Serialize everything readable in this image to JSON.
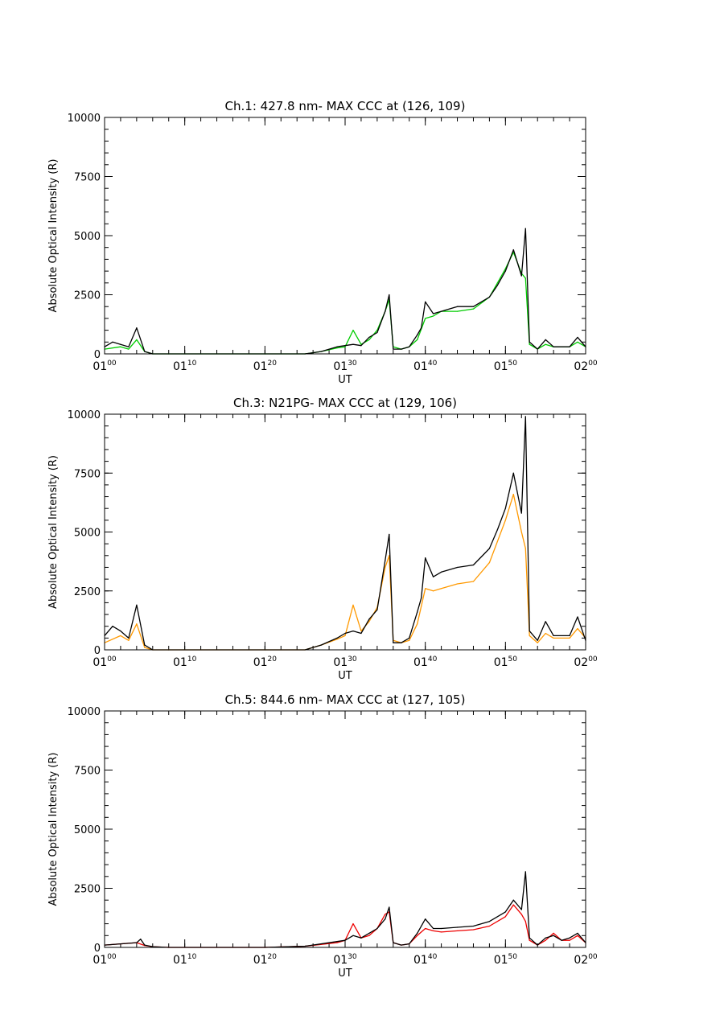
{
  "chart_data": [
    {
      "type": "line",
      "title": "Ch.1: 427.8 nm- MAX CCC at (126, 109)",
      "xlabel": "UT",
      "ylabel": "Absolute Optical Intensity (R)",
      "xlim": [
        "01:00",
        "02:00"
      ],
      "ylim": [
        0,
        10000
      ],
      "x_ticks": [
        {
          "h": "01",
          "m": "00"
        },
        {
          "h": "01",
          "m": "10"
        },
        {
          "h": "01",
          "m": "20"
        },
        {
          "h": "01",
          "m": "30"
        },
        {
          "h": "01",
          "m": "40"
        },
        {
          "h": "01",
          "m": "50"
        },
        {
          "h": "02",
          "m": "00"
        }
      ],
      "y_ticks": [
        "0",
        "2500",
        "5000",
        "7500",
        "10000"
      ],
      "grid": false,
      "series": [
        {
          "color": "#00cc00",
          "x": [
            "01:00",
            "01:02",
            "01:03",
            "01:04",
            "01:05",
            "01:06",
            "01:08",
            "01:20",
            "01:25",
            "01:27",
            "01:29",
            "01:30",
            "01:31",
            "01:32",
            "01:33",
            "01:34",
            "01:35",
            "01:35.5",
            "01:36",
            "01:37",
            "01:38",
            "01:39",
            "01:40",
            "01:41",
            "01:42",
            "01:44",
            "01:46",
            "01:48",
            "01:49",
            "01:50",
            "01:51",
            "01:52",
            "01:52.5",
            "01:53",
            "01:54",
            "01:55",
            "01:56",
            "01:58",
            "01:59",
            "02:00"
          ],
          "y": [
            200,
            300,
            200,
            600,
            100,
            0,
            0,
            0,
            0,
            100,
            250,
            300,
            1000,
            400,
            600,
            1000,
            1800,
            2300,
            300,
            200,
            300,
            600,
            1500,
            1600,
            1800,
            1800,
            1900,
            2400,
            3000,
            3600,
            4300,
            3400,
            3200,
            400,
            200,
            400,
            300,
            300,
            500,
            300
          ]
        },
        {
          "color": "#000000",
          "x": [
            "01:00",
            "01:01",
            "01:02",
            "01:03",
            "01:04",
            "01:05",
            "01:06",
            "01:08",
            "01:20",
            "01:25",
            "01:27",
            "01:29",
            "01:30",
            "01:31",
            "01:32",
            "01:33",
            "01:34",
            "01:35",
            "01:35.5",
            "01:36",
            "01:37",
            "01:38",
            "01:39",
            "01:39.5",
            "01:40",
            "01:41",
            "01:42",
            "01:44",
            "01:46",
            "01:48",
            "01:49",
            "01:50",
            "01:51",
            "01:52",
            "01:52.5",
            "01:53",
            "01:54",
            "01:55",
            "01:56",
            "01:58",
            "01:59",
            "02:00"
          ],
          "y": [
            300,
            500,
            400,
            300,
            1100,
            100,
            0,
            0,
            0,
            0,
            100,
            300,
            350,
            400,
            350,
            700,
            900,
            1800,
            2500,
            200,
            200,
            300,
            800,
            1100,
            2200,
            1700,
            1800,
            2000,
            2000,
            2400,
            2900,
            3500,
            4400,
            3300,
            5300,
            500,
            200,
            600,
            300,
            300,
            700,
            300
          ]
        }
      ]
    },
    {
      "type": "line",
      "title": "Ch.3: N21PG- MAX CCC at (129, 106)",
      "xlabel": "UT",
      "ylabel": "Absolute Optical Intensity (R)",
      "xlim": [
        "01:00",
        "02:00"
      ],
      "ylim": [
        0,
        10000
      ],
      "x_ticks": [
        {
          "h": "01",
          "m": "00"
        },
        {
          "h": "01",
          "m": "10"
        },
        {
          "h": "01",
          "m": "20"
        },
        {
          "h": "01",
          "m": "30"
        },
        {
          "h": "01",
          "m": "40"
        },
        {
          "h": "01",
          "m": "50"
        },
        {
          "h": "02",
          "m": "00"
        }
      ],
      "y_ticks": [
        "0",
        "2500",
        "5000",
        "7500",
        "10000"
      ],
      "grid": false,
      "series": [
        {
          "color": "#ff9900",
          "x": [
            "01:00",
            "01:02",
            "01:03",
            "01:04",
            "01:05",
            "01:06",
            "01:08",
            "01:20",
            "01:25",
            "01:27",
            "01:29",
            "01:30",
            "01:31",
            "01:32",
            "01:33",
            "01:34",
            "01:35",
            "01:35.5",
            "01:36",
            "01:37",
            "01:38",
            "01:39",
            "01:40",
            "01:41",
            "01:42",
            "01:44",
            "01:46",
            "01:48",
            "01:49",
            "01:50",
            "01:51",
            "01:52",
            "01:52.5",
            "01:53",
            "01:54",
            "01:55",
            "01:56",
            "01:58",
            "01:59",
            "02:00"
          ],
          "y": [
            300,
            600,
            400,
            1100,
            100,
            0,
            0,
            0,
            0,
            200,
            450,
            600,
            1900,
            800,
            1200,
            1800,
            3500,
            4000,
            400,
            300,
            400,
            1100,
            2600,
            2500,
            2600,
            2800,
            2900,
            3700,
            4600,
            5500,
            6600,
            5000,
            4300,
            600,
            300,
            700,
            500,
            500,
            900,
            500
          ]
        },
        {
          "color": "#000000",
          "x": [
            "01:00",
            "01:01",
            "01:02",
            "01:03",
            "01:04",
            "01:05",
            "01:06",
            "01:08",
            "01:20",
            "01:25",
            "01:27",
            "01:29",
            "01:30",
            "01:31",
            "01:32",
            "01:33",
            "01:34",
            "01:35",
            "01:35.5",
            "01:36",
            "01:37",
            "01:38",
            "01:39",
            "01:39.5",
            "01:40",
            "01:41",
            "01:42",
            "01:44",
            "01:46",
            "01:48",
            "01:49",
            "01:50",
            "01:51",
            "01:52",
            "01:52.5",
            "01:53",
            "01:54",
            "01:55",
            "01:56",
            "01:58",
            "01:59",
            "02:00"
          ],
          "y": [
            600,
            1000,
            800,
            500,
            1900,
            200,
            0,
            0,
            0,
            0,
            200,
            500,
            700,
            800,
            700,
            1300,
            1700,
            3800,
            4900,
            300,
            300,
            500,
            1600,
            2200,
            3900,
            3100,
            3300,
            3500,
            3600,
            4300,
            5100,
            6000,
            7500,
            5800,
            9900,
            800,
            400,
            1200,
            600,
            600,
            1400,
            400
          ]
        }
      ]
    },
    {
      "type": "line",
      "title": "Ch.5: 844.6 nm- MAX CCC at (127, 105)",
      "xlabel": "UT",
      "ylabel": "Absolute Optical Intensity (R)",
      "xlim": [
        "01:00",
        "02:00"
      ],
      "ylim": [
        0,
        10000
      ],
      "x_ticks": [
        {
          "h": "01",
          "m": "00"
        },
        {
          "h": "01",
          "m": "10"
        },
        {
          "h": "01",
          "m": "20"
        },
        {
          "h": "01",
          "m": "30"
        },
        {
          "h": "01",
          "m": "40"
        },
        {
          "h": "01",
          "m": "50"
        },
        {
          "h": "02",
          "m": "00"
        }
      ],
      "y_ticks": [
        "0",
        "2500",
        "5000",
        "7500",
        "10000"
      ],
      "grid": false,
      "series": [
        {
          "color": "#ee0000",
          "x": [
            "01:00",
            "01:02",
            "01:04",
            "01:05",
            "01:06",
            "01:08",
            "01:20",
            "01:25",
            "01:29",
            "01:30",
            "01:31",
            "01:32",
            "01:33",
            "01:34",
            "01:35",
            "01:35.5",
            "01:36",
            "01:37",
            "01:38",
            "01:39",
            "01:40",
            "01:41",
            "01:42",
            "01:44",
            "01:46",
            "01:48",
            "01:50",
            "01:51",
            "01:52",
            "01:52.5",
            "01:53",
            "01:54",
            "01:55",
            "01:56",
            "01:57",
            "01:58",
            "01:59",
            "02:00"
          ],
          "y": [
            100,
            150,
            200,
            80,
            30,
            0,
            0,
            50,
            200,
            300,
            1000,
            400,
            500,
            800,
            1400,
            1500,
            200,
            100,
            150,
            500,
            800,
            700,
            650,
            700,
            750,
            900,
            1300,
            1800,
            1400,
            1100,
            300,
            100,
            300,
            600,
            300,
            300,
            500,
            200
          ]
        },
        {
          "color": "#000000",
          "x": [
            "01:00",
            "01:02",
            "01:04",
            "01:04.5",
            "01:05",
            "01:06",
            "01:08",
            "01:20",
            "01:25",
            "01:29",
            "01:30",
            "01:31",
            "01:32",
            "01:33",
            "01:34",
            "01:35",
            "01:35.5",
            "01:36",
            "01:37",
            "01:38",
            "01:39",
            "01:40",
            "01:41",
            "01:42",
            "01:44",
            "01:46",
            "01:48",
            "01:50",
            "01:51",
            "01:52",
            "01:52.5",
            "01:53",
            "01:54",
            "01:55",
            "01:56",
            "01:57",
            "01:58",
            "01:59",
            "02:00"
          ],
          "y": [
            100,
            150,
            200,
            350,
            100,
            30,
            0,
            0,
            50,
            250,
            300,
            500,
            400,
            600,
            800,
            1200,
            1700,
            200,
            100,
            150,
            600,
            1200,
            800,
            800,
            850,
            900,
            1100,
            1500,
            2000,
            1600,
            3200,
            400,
            100,
            400,
            500,
            300,
            400,
            600,
            200
          ]
        }
      ]
    }
  ]
}
